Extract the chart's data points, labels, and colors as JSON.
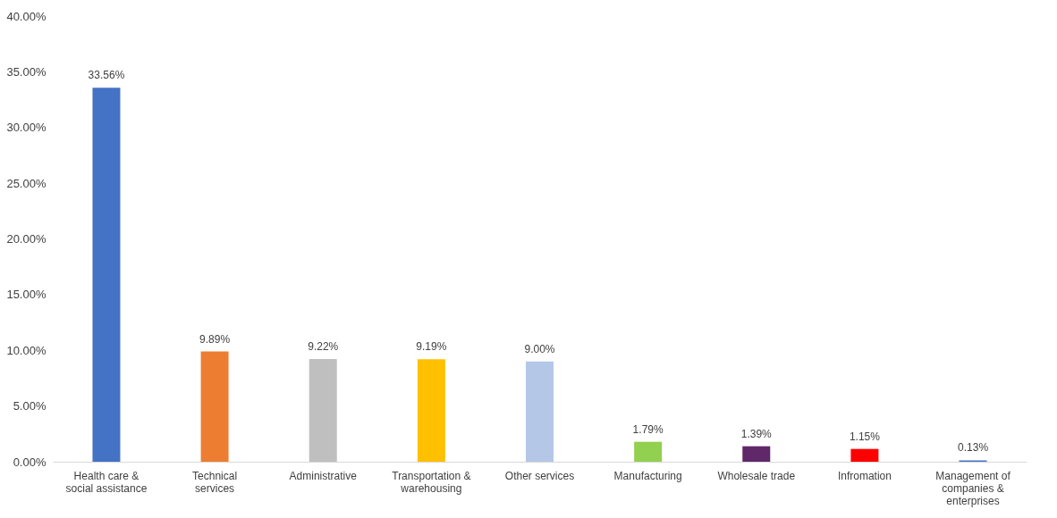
{
  "chart_data": {
    "type": "bar",
    "categories": [
      "Health care & social assistance",
      "Technical services",
      "Administrative",
      "Transportation & warehousing",
      "Other services",
      "Manufacturing",
      "Wholesale trade",
      "Infromation",
      "Management of companies & enterprises"
    ],
    "values": [
      33.56,
      9.89,
      9.22,
      9.19,
      9.0,
      1.79,
      1.39,
      1.15,
      0.13
    ],
    "value_labels": [
      "33.56%",
      "9.89%",
      "9.22%",
      "9.19%",
      "9.00%",
      "1.79%",
      "1.39%",
      "1.15%",
      "0.13%"
    ],
    "colors": [
      "#4472c4",
      "#ed7d31",
      "#bfbfbf",
      "#ffc000",
      "#b4c7e7",
      "#92d050",
      "#602769",
      "#ff0000",
      "#4472c4"
    ],
    "ylim": [
      0,
      40
    ],
    "yticks": [
      {
        "value": 0,
        "label": "0.00%"
      },
      {
        "value": 5,
        "label": "5.00%"
      },
      {
        "value": 10,
        "label": "10.00%"
      },
      {
        "value": 15,
        "label": "15.00%"
      },
      {
        "value": 20,
        "label": "20.00%"
      },
      {
        "value": 25,
        "label": "25.00%"
      },
      {
        "value": 30,
        "label": "30.00%"
      },
      {
        "value": 35,
        "label": "35.00%"
      },
      {
        "value": 40,
        "label": "40.00%"
      }
    ],
    "grid": false
  }
}
